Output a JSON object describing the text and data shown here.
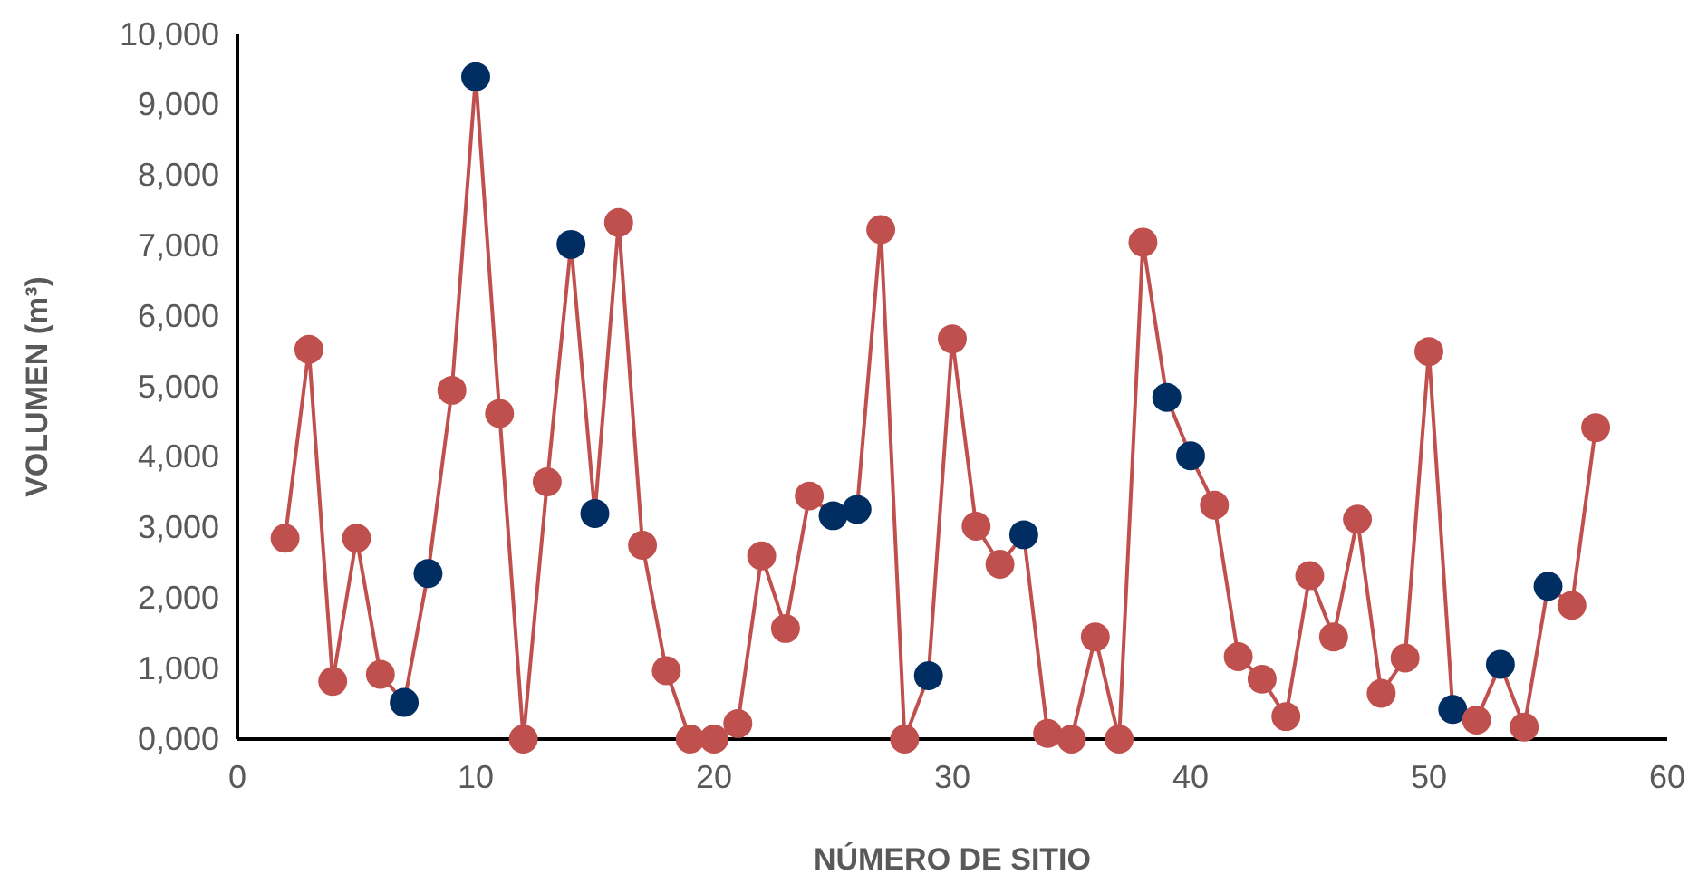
{
  "chart_data": {
    "type": "line",
    "xlabel": "NÚMERO DE SITIO",
    "ylabel": "VOLUMEN (m³)",
    "marker": "circle",
    "line_style": "solid",
    "x": [
      2,
      3,
      4,
      5,
      6,
      7,
      8,
      9,
      10,
      11,
      12,
      13,
      14,
      15,
      16,
      17,
      18,
      19,
      20,
      21,
      22,
      23,
      24,
      25,
      26,
      27,
      28,
      29,
      30,
      31,
      32,
      33,
      34,
      35,
      36,
      37,
      38,
      39,
      40,
      41,
      42,
      43,
      44,
      45,
      46,
      47,
      48,
      49,
      50,
      51,
      52,
      53,
      54,
      55,
      56,
      57
    ],
    "series": [
      {
        "color": "#c0504d",
        "values": [
          2850,
          5530,
          820,
          2850,
          920,
          520,
          2350,
          4950,
          9400,
          4620,
          0,
          3650,
          7020,
          3200,
          7330,
          2750,
          970,
          0,
          0,
          220,
          2600,
          1570,
          3450,
          3170,
          3260,
          7230,
          0,
          900,
          5680,
          3020,
          2480,
          2900,
          80,
          0,
          1450,
          0,
          7050,
          4850,
          4020,
          3320,
          1170,
          850,
          320,
          2320,
          1450,
          3120,
          650,
          1150,
          5500,
          420,
          270,
          1060,
          170,
          2170,
          1900,
          4420
        ],
        "colors": [
          "#c0504d",
          "#c0504d",
          "#c0504d",
          "#c0504d",
          "#c0504d",
          "#002d62",
          "#002d62",
          "#c0504d",
          "#002d62",
          "#c0504d",
          "#c0504d",
          "#c0504d",
          "#002d62",
          "#002d62",
          "#c0504d",
          "#c0504d",
          "#c0504d",
          "#c0504d",
          "#c0504d",
          "#c0504d",
          "#c0504d",
          "#c0504d",
          "#c0504d",
          "#002d62",
          "#002d62",
          "#c0504d",
          "#c0504d",
          "#002d62",
          "#c0504d",
          "#c0504d",
          "#c0504d",
          "#002d62",
          "#c0504d",
          "#c0504d",
          "#c0504d",
          "#c0504d",
          "#c0504d",
          "#002d62",
          "#002d62",
          "#c0504d",
          "#c0504d",
          "#c0504d",
          "#c0504d",
          "#c0504d",
          "#c0504d",
          "#c0504d",
          "#c0504d",
          "#c0504d",
          "#c0504d",
          "#002d62",
          "#c0504d",
          "#002d62",
          "#c0504d",
          "#002d62",
          "#c0504d",
          "#c0504d"
        ]
      }
    ],
    "xlim": [
      0,
      60
    ],
    "xticks": [
      0,
      10,
      20,
      30,
      40,
      50,
      60
    ],
    "ylim": [
      0,
      10000
    ],
    "yticks": [
      {
        "value": 0,
        "label": "0,000"
      },
      {
        "value": 1000,
        "label": "1,000"
      },
      {
        "value": 2000,
        "label": "2,000"
      },
      {
        "value": 3000,
        "label": "3,000"
      },
      {
        "value": 4000,
        "label": "4,000"
      },
      {
        "value": 5000,
        "label": "5,000"
      },
      {
        "value": 6000,
        "label": "6,000"
      },
      {
        "value": 7000,
        "label": "7,000"
      },
      {
        "value": 8000,
        "label": "8,000"
      },
      {
        "value": 9000,
        "label": "9,000"
      },
      {
        "value": 10000,
        "label": "10,000"
      }
    ]
  }
}
